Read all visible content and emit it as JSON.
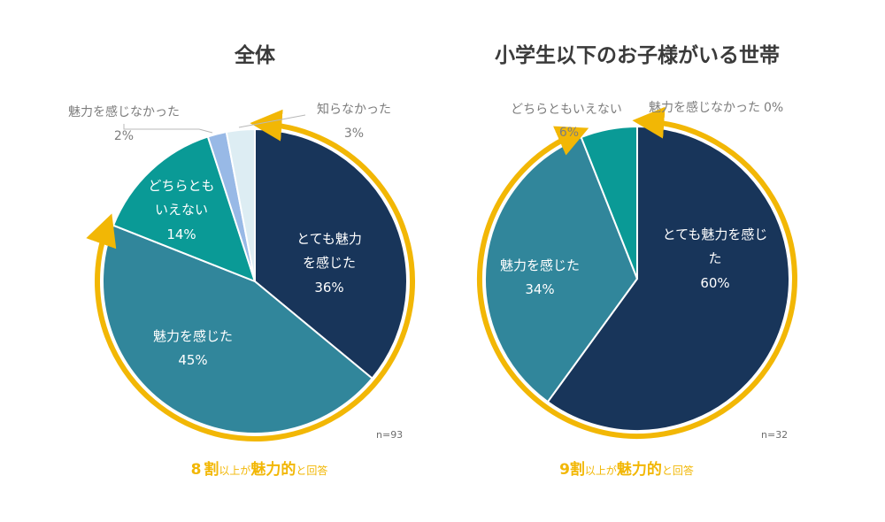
{
  "chart_data": [
    {
      "type": "pie",
      "title": "全体",
      "n_label": "n=93",
      "slices": [
        {
          "label": "とても魅力を感じた",
          "value": 36,
          "color": "#18355a",
          "value_label": "36%"
        },
        {
          "label": "魅力を感じた",
          "value": 45,
          "color": "#31869b",
          "value_label": "45%"
        },
        {
          "label": "どちらともいえない",
          "value": 14,
          "color": "#0a9a96",
          "value_label": "14%"
        },
        {
          "label": "魅力を感じなかった",
          "value": 2,
          "color": "#98b9e6",
          "value_label": "2%"
        },
        {
          "label": "知らなかった",
          "value": 3,
          "color": "#ddedf3",
          "value_label": "3%"
        }
      ],
      "caption": {
        "number": "8",
        "kanji": "割",
        "text1": "以上が",
        "emph": "魅力的",
        "text2": "と回答"
      }
    },
    {
      "type": "pie",
      "title": "小学生以下のお子様がいる世帯",
      "n_label": "n=32",
      "slices": [
        {
          "label": "とても魅力を感じた",
          "value": 60,
          "color": "#18355a",
          "value_label": "60%"
        },
        {
          "label": "魅力を感じた",
          "value": 34,
          "color": "#31869b",
          "value_label": "34%"
        },
        {
          "label": "どちらともいえない",
          "value": 6,
          "color": "#0a9a96",
          "value_label": "6%"
        },
        {
          "label": "魅力を感じなかった",
          "value": 0,
          "color": "#98b9e6",
          "value_label": "0%"
        }
      ],
      "caption": {
        "number": "9",
        "kanji": "割",
        "text1": "以上が",
        "emph": "魅力的",
        "text2": "と回答"
      }
    }
  ],
  "highlight_color": "#f2b705"
}
